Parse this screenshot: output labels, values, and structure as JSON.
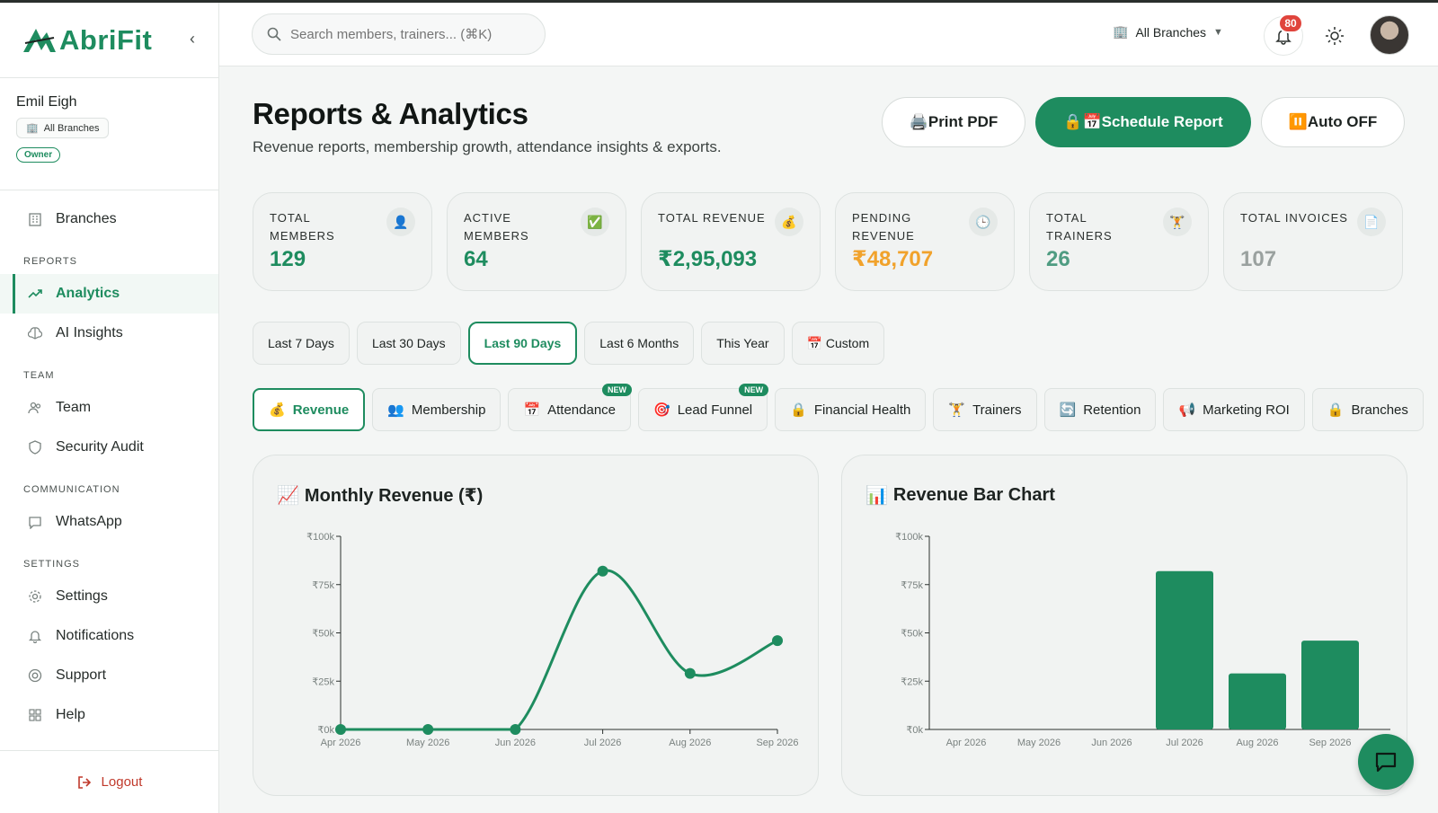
{
  "app": {
    "name": "AbriFit"
  },
  "user": {
    "name": "Emil Eigh",
    "branch": "All Branches",
    "role": "Owner"
  },
  "sidebar": {
    "items": [
      {
        "label": "Branches",
        "icon": "building-icon"
      },
      {
        "section": "REPORTS"
      },
      {
        "label": "Analytics",
        "icon": "trend-icon",
        "active": true
      },
      {
        "label": "AI Insights",
        "icon": "brain-icon"
      },
      {
        "section": "TEAM"
      },
      {
        "label": "Team",
        "icon": "users-icon"
      },
      {
        "label": "Security Audit",
        "icon": "shield-icon"
      },
      {
        "section": "COMMUNICATION"
      },
      {
        "label": "WhatsApp",
        "icon": "message-icon"
      },
      {
        "section": "SETTINGS"
      },
      {
        "label": "Settings",
        "icon": "gear-icon"
      },
      {
        "label": "Notifications",
        "icon": "bell-icon"
      },
      {
        "label": "Support",
        "icon": "lifebuoy-icon"
      },
      {
        "label": "Help",
        "icon": "grid-icon"
      }
    ],
    "logout": "Logout"
  },
  "header": {
    "search_placeholder": "Search members, trainers... (⌘K)",
    "branch": "All Branches",
    "notifications": "80"
  },
  "page": {
    "title": "Reports & Analytics",
    "subtitle": "Revenue reports, membership growth, attendance insights & exports.",
    "buttons": {
      "print": "🖨️Print PDF",
      "schedule": "🔒📅Schedule Report",
      "auto": "⏸️Auto OFF"
    }
  },
  "stats": [
    {
      "label": "TOTAL MEMBERS",
      "value": "129",
      "icon": "👤",
      "color": "green"
    },
    {
      "label": "ACTIVE MEMBERS",
      "value": "64",
      "icon": "✅",
      "color": "green"
    },
    {
      "label": "TOTAL REVENUE",
      "value": "₹2,95,093",
      "icon": "💰",
      "color": "green"
    },
    {
      "label": "PENDING REVENUE",
      "value": "₹48,707",
      "icon": "🕒",
      "color": "orange"
    },
    {
      "label": "TOTAL TRAINERS",
      "value": "26",
      "icon": "🏋️",
      "color": "teal"
    },
    {
      "label": "TOTAL INVOICES",
      "value": "107",
      "icon": "📄",
      "color": "gray"
    }
  ],
  "ranges": [
    "Last 7 Days",
    "Last 30 Days",
    "Last 90 Days",
    "Last 6 Months",
    "This Year",
    "📅 Custom"
  ],
  "active_range": "Last 90 Days",
  "tabs": [
    {
      "label": "Revenue",
      "icon": "💰",
      "active": true
    },
    {
      "label": "Membership",
      "icon": "👥"
    },
    {
      "label": "Attendance",
      "icon": "📅",
      "new": "NEW"
    },
    {
      "label": "Lead Funnel",
      "icon": "🎯",
      "new": "NEW"
    },
    {
      "label": "Financial Health",
      "icon": "🔒"
    },
    {
      "label": "Trainers",
      "icon": "🏋️"
    },
    {
      "label": "Retention",
      "icon": "🔄"
    },
    {
      "label": "Marketing ROI",
      "icon": "📢"
    },
    {
      "label": "Branches",
      "icon": "🔒"
    }
  ],
  "colors": {
    "accent": "#1e8c5f",
    "pending": "#f1a22b",
    "badge": "#e0443c"
  },
  "chart_data": [
    {
      "type": "line",
      "title": "Monthly Revenue (₹)",
      "title_icon": "📈",
      "categories": [
        "Apr 2026",
        "May 2026",
        "Jun 2026",
        "Jul 2026",
        "Aug 2026",
        "Sep 2026"
      ],
      "values": [
        0,
        0,
        0,
        82000,
        29000,
        46000
      ],
      "yticks": [
        "₹0k",
        "₹25k",
        "₹50k",
        "₹75k",
        "₹100k"
      ],
      "ylim": [
        0,
        100000
      ]
    },
    {
      "type": "bar",
      "title": "Revenue Bar Chart",
      "title_icon": "📊",
      "categories": [
        "Apr 2026",
        "May 2026",
        "Jun 2026",
        "Jul 2026",
        "Aug 2026",
        "Sep 2026"
      ],
      "values": [
        0,
        0,
        0,
        82000,
        29000,
        46000
      ],
      "yticks": [
        "₹0k",
        "₹25k",
        "₹50k",
        "₹75k",
        "₹100k"
      ],
      "ylim": [
        0,
        100000
      ]
    }
  ]
}
